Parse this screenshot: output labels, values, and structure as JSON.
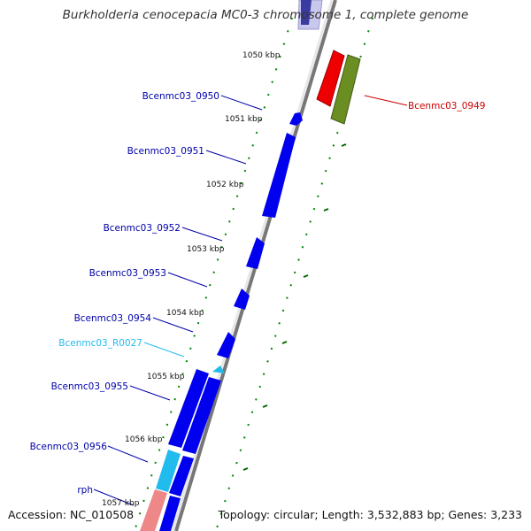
{
  "title": "Burkholderia cenocepacia MC0-3 chromosome 1, complete genome",
  "accession_label": "Accession: NC_010508",
  "topology_label": "Topology: circular; Length: 3,532,883 bp; Genes: 3,233",
  "colors": {
    "forward_gene": "#0000ee",
    "rna_gene": "#22bbee",
    "pseudo_gene": "#ee8888",
    "reverse_gene_red": "#ee0000",
    "reverse_gene_green": "#6b8e23",
    "backbone": "#888888",
    "tick": "#007700",
    "label_forward": "#0000aa",
    "label_rna": "#22bbee",
    "label_reverse": "#cc0000"
  },
  "scale_ticks": [
    "1050 kbp",
    "1051 kbp",
    "1052 kbp",
    "1053 kbp",
    "1054 kbp",
    "1055 kbp",
    "1056 kbp",
    "1057 kbp"
  ],
  "gene_labels": [
    {
      "text": "Bcenmc03_0950",
      "kind": "forward"
    },
    {
      "text": "Bcenmc03_0951",
      "kind": "forward"
    },
    {
      "text": "Bcenmc03_0952",
      "kind": "forward"
    },
    {
      "text": "Bcenmc03_0953",
      "kind": "forward"
    },
    {
      "text": "Bcenmc03_0954",
      "kind": "forward"
    },
    {
      "text": "Bcenmc03_R0027",
      "kind": "rna"
    },
    {
      "text": "Bcenmc03_0955",
      "kind": "forward"
    },
    {
      "text": "Bcenmc03_0956",
      "kind": "forward"
    },
    {
      "text": "rph",
      "kind": "forward"
    },
    {
      "text": "Bcenmc03_0949",
      "kind": "reverse"
    }
  ]
}
